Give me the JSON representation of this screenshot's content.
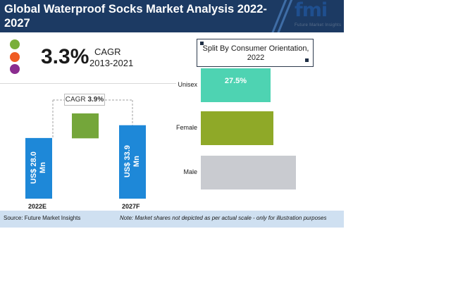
{
  "header": {
    "title": "Global Waterproof Socks Market Analysis 2022-2027",
    "logo_text": "fmi",
    "logo_subtext": "Future Market Insights",
    "colors": {
      "banner": "#1c3a63",
      "logo": "#1f4f8f"
    }
  },
  "legend_dots": [
    {
      "name": "green-dot",
      "color": "#7aaf3a"
    },
    {
      "name": "orange-dot",
      "color": "#ef5b24"
    },
    {
      "name": "purple-dot",
      "color": "#8b2c8f"
    }
  ],
  "cagr_headline": {
    "value": "3.3%",
    "label": "CAGR",
    "period": "2013-2021"
  },
  "chart_data": [
    {
      "type": "bar",
      "categories": [
        "2022E",
        "2027F"
      ],
      "values": [
        28.0,
        33.9
      ],
      "value_labels": [
        "US$ 28.0 Mn",
        "US$ 33.9 Mn"
      ],
      "cagr_annotation": {
        "label": "CAGR",
        "value": "3.9%"
      },
      "colors": {
        "bars": "#1e88d8",
        "increment": "#74a63a",
        "connector": "#a0a0a0"
      },
      "ylim": [
        0,
        40
      ],
      "grid": false
    },
    {
      "type": "bar",
      "orientation": "horizontal",
      "title": "Split By Consumer Orientation, 2022",
      "categories": [
        "Unisex",
        "Female",
        "Male"
      ],
      "values": [
        27.5,
        28.6,
        37.5
      ],
      "value_labels": [
        "27.5%",
        "",
        ""
      ],
      "colors": [
        "#4ed3b2",
        "#8fa928",
        "#c9cbd0"
      ],
      "xlim": [
        0,
        40
      ],
      "grid": false
    }
  ],
  "footer": {
    "source": "Source: Future Market Insights",
    "note": "Note: Market shares not depicted as per actual scale - only for illustration purposes"
  }
}
